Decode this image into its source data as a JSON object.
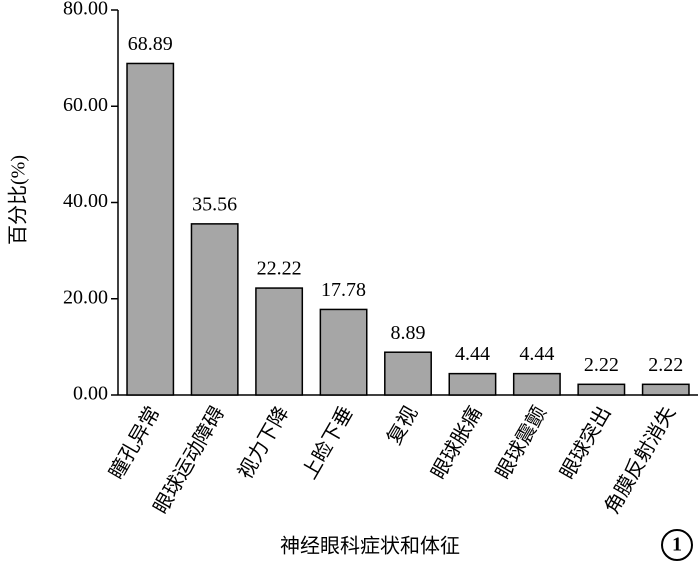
{
  "chart_data": {
    "type": "bar",
    "y_label": "百分比(%)",
    "x_label": "神经眼科症状和体征",
    "panel_label": "1",
    "categories": [
      "瞳孔异常",
      "眼球运动障碍",
      "视力下降",
      "上睑下垂",
      "复视",
      "眼球胀痛",
      "眼球震颤",
      "眼球突出",
      "角膜反射消失"
    ],
    "values": [
      68.89,
      35.56,
      22.22,
      17.78,
      8.89,
      4.44,
      4.44,
      2.22,
      2.22
    ],
    "color": "#a6a6a6",
    "ylim": [
      0,
      80
    ],
    "yticks": [
      {
        "value": 0,
        "label": "0.00"
      },
      {
        "value": 20,
        "label": "20.00"
      },
      {
        "value": 40,
        "label": "40.00"
      },
      {
        "value": 60,
        "label": "60.00"
      },
      {
        "value": 80,
        "label": "80.00"
      }
    ],
    "grid": false
  }
}
